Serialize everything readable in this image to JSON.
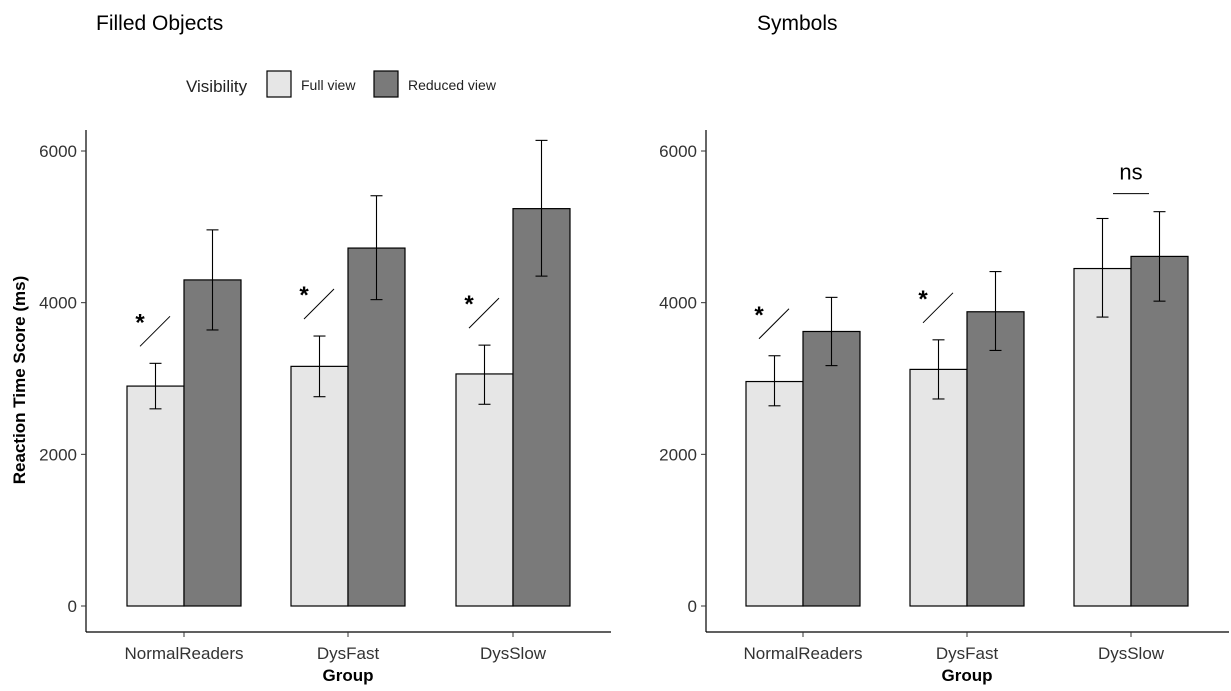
{
  "legend": {
    "title": "Visibility",
    "items": [
      {
        "label": "Full view",
        "color": "#e6e6e6"
      },
      {
        "label": "Reduced view",
        "color": "#7a7a7a"
      }
    ]
  },
  "chart_data": [
    {
      "type": "bar",
      "title": "Filled Objects",
      "xlabel": "Group",
      "ylabel": "Reaction Time Score (ms)",
      "categories": [
        "NormalReaders",
        "DysFast",
        "DysSlow"
      ],
      "ylim": [
        0,
        6300
      ],
      "yticks": [
        0,
        2000,
        4000,
        6000
      ],
      "grid": false,
      "legend_position": "top",
      "series": [
        {
          "name": "Full view",
          "values": [
            2900,
            3160,
            3060
          ],
          "error_low": [
            2600,
            2760,
            2660
          ],
          "error_high": [
            3200,
            3560,
            3440
          ]
        },
        {
          "name": "Reduced view",
          "values": [
            4300,
            4720,
            5240
          ],
          "error_low": [
            3640,
            4040,
            4350
          ],
          "error_high": [
            4960,
            5410,
            6140
          ]
        }
      ],
      "annotations": [
        {
          "category": "NormalReaders",
          "label": "*"
        },
        {
          "category": "DysFast",
          "label": "*"
        },
        {
          "category": "DysSlow",
          "label": "*"
        }
      ]
    },
    {
      "type": "bar",
      "title": "Symbols",
      "xlabel": "Group",
      "ylabel": "",
      "categories": [
        "NormalReaders",
        "DysFast",
        "DysSlow"
      ],
      "ylim": [
        0,
        6300
      ],
      "yticks": [
        0,
        2000,
        4000,
        6000
      ],
      "grid": false,
      "series": [
        {
          "name": "Full view",
          "values": [
            2960,
            3120,
            4450
          ],
          "error_low": [
            2640,
            2730,
            3810
          ],
          "error_high": [
            3300,
            3510,
            5110
          ]
        },
        {
          "name": "Reduced view",
          "values": [
            3620,
            3880,
            4610
          ],
          "error_low": [
            3170,
            3370,
            4020
          ],
          "error_high": [
            4070,
            4410,
            5200
          ]
        }
      ],
      "annotations": [
        {
          "category": "NormalReaders",
          "label": "*"
        },
        {
          "category": "DysFast",
          "label": "*"
        },
        {
          "category": "DysSlow",
          "label": "ns"
        }
      ]
    }
  ]
}
